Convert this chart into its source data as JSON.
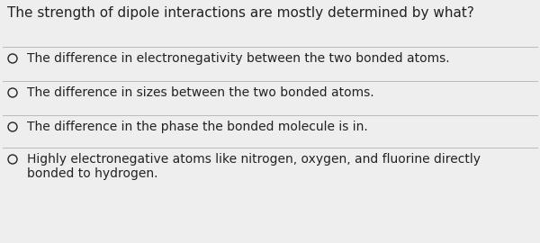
{
  "question": "The strength of dipole interactions are mostly determined by what?",
  "options": [
    "The difference in electronegativity between the two bonded atoms.",
    "The difference in sizes between the two bonded atoms.",
    "The difference in the phase the bonded molecule is in.",
    "Highly electronegative atoms like nitrogen, oxygen, and fluorine directly\nbonded to hydrogen."
  ],
  "bg_color": "#eeeeee",
  "text_color": "#222222",
  "question_fontsize": 11.0,
  "option_fontsize": 10.0,
  "divider_color": "#bbbbbb",
  "fig_width": 6.0,
  "fig_height": 2.7,
  "dpi": 100
}
